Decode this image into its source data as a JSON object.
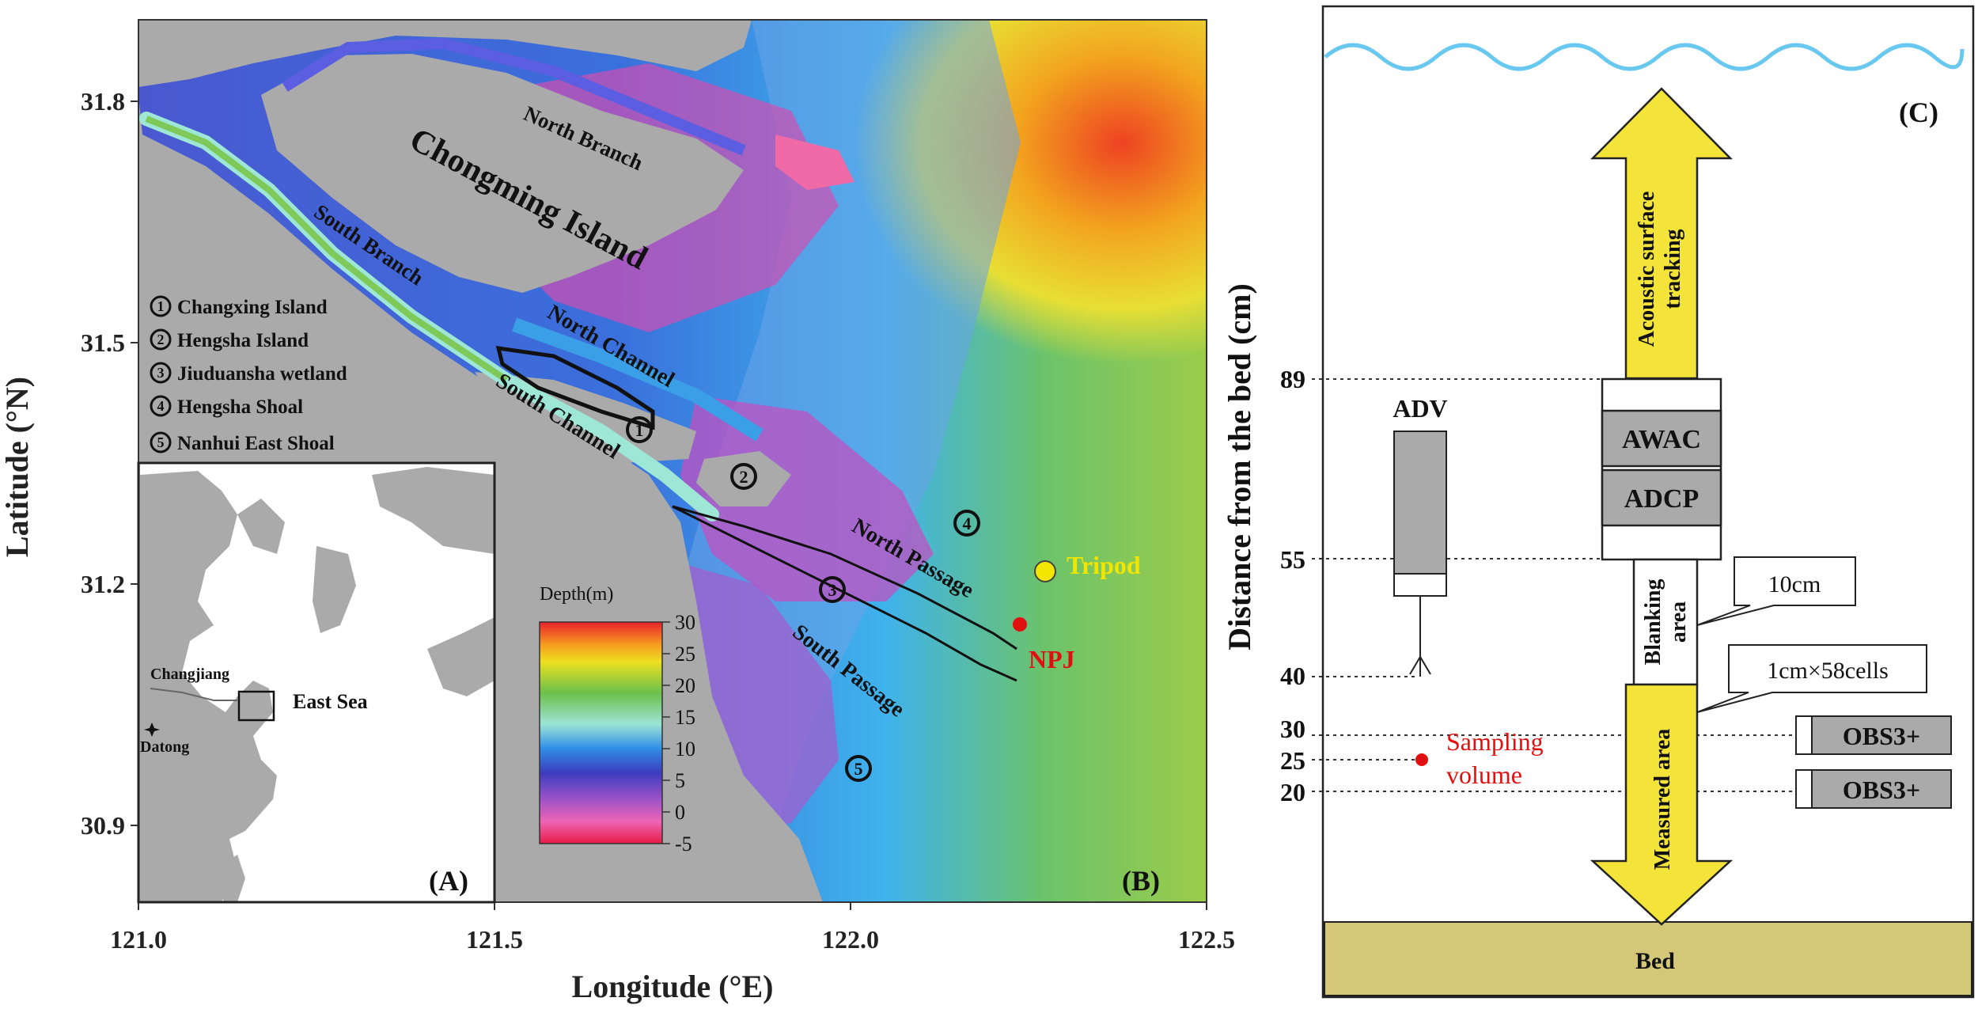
{
  "panel_b": {
    "label": "(B)",
    "axis": {
      "xlabel": "Longitude (°E)",
      "ylabel": "Latitude (°N)",
      "xticks": [
        "121.0",
        "121.5",
        "122.0",
        "122.5"
      ],
      "yticks": [
        "31.8",
        "31.5",
        "31.2",
        "30.9"
      ]
    },
    "places": {
      "chongming": "Chongming Island",
      "north_branch": "North Branch",
      "south_branch": "South Branch",
      "north_channel": "North Channel",
      "south_channel": "South Channel",
      "north_passage": "North Passage",
      "south_passage": "South Passage"
    },
    "legend": [
      {
        "num": "1",
        "text": "Changxing Island"
      },
      {
        "num": "2",
        "text": "Hengsha Island"
      },
      {
        "num": "3",
        "text": "Jiuduansha wetland"
      },
      {
        "num": "4",
        "text": "Hengsha Shoal"
      },
      {
        "num": "5",
        "text": "Nanhui East Shoal"
      }
    ],
    "markers": {
      "tripod": {
        "label": "Tripod",
        "color": "#f2e600"
      },
      "npj": {
        "label": "NPJ",
        "color": "#e01010"
      }
    },
    "colorbar": {
      "title": "Depth(m)",
      "ticks": [
        "30",
        "25",
        "20",
        "15",
        "10",
        "5",
        "0",
        "-5"
      ]
    }
  },
  "panel_a": {
    "label": "(A)",
    "changjiang": "Changjiang",
    "east_sea": "East Sea",
    "datong": "Datong"
  },
  "panel_c": {
    "label": "(C)",
    "ylabel": "Distance from the bed (cm)",
    "heights": [
      "89",
      "55",
      "40",
      "30",
      "25",
      "20"
    ],
    "adv": "ADV",
    "awac": "AWAC",
    "adcp": "ADCP",
    "acoustic_1": "Acoustic surface",
    "acoustic_2": "tracking",
    "blanking_1": "Blanking",
    "blanking_2": "area",
    "measured": "Measured area",
    "callout_1": "10cm",
    "callout_2": "1cm×58cells",
    "sampling_1": "Sampling",
    "sampling_2": "volume",
    "obs_1": "OBS3+",
    "obs_2": "OBS3+",
    "bed": "Bed"
  }
}
